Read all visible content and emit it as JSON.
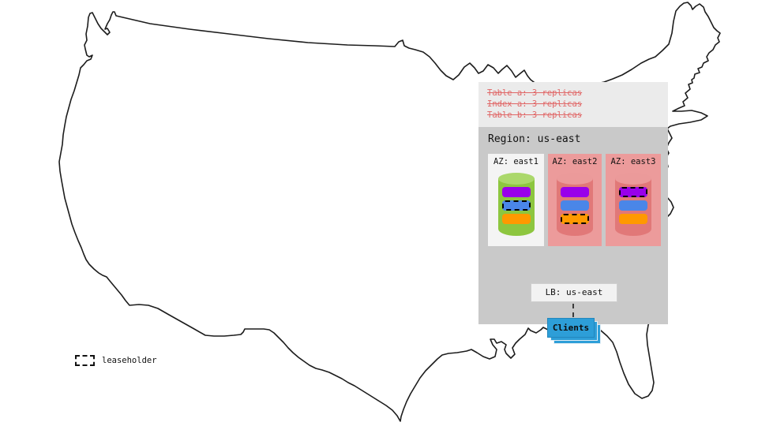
{
  "policies": [
    "Table a: 3 replicas",
    "Index a: 3 replicas",
    "Table b: 3 replicas"
  ],
  "region": {
    "title": "Region: us-east",
    "azs": [
      {
        "label": "AZ: east1",
        "status": "healthy",
        "cylinder": "green",
        "replicas": [
          {
            "color": "purple",
            "leaseholder": false
          },
          {
            "color": "blue",
            "leaseholder": true
          },
          {
            "color": "orange",
            "leaseholder": false
          }
        ]
      },
      {
        "label": "AZ: east2",
        "status": "unavailable",
        "cylinder": "red",
        "replicas": [
          {
            "color": "purple",
            "leaseholder": false
          },
          {
            "color": "blue",
            "leaseholder": false
          },
          {
            "color": "orange",
            "leaseholder": true
          }
        ]
      },
      {
        "label": "AZ: east3",
        "status": "unavailable",
        "cylinder": "red",
        "replicas": [
          {
            "color": "purple",
            "leaseholder": true
          },
          {
            "color": "blue",
            "leaseholder": false
          },
          {
            "color": "orange",
            "leaseholder": false
          }
        ]
      }
    ],
    "load_balancer": {
      "label": "LB: us-east"
    },
    "clients": {
      "label": "Clients"
    }
  },
  "legend": {
    "label": "leaseholder"
  },
  "colors": {
    "policy_text": "#e06666",
    "panel_top_bg": "#ebebeb",
    "panel_region_bg": "#c9c9c9",
    "az_healthy_bg": "#f4f4f4",
    "az_unavailable_bg": "#ec9b9b",
    "cylinder_green_body": "#8dc63f",
    "cylinder_green_top": "#abd86b",
    "cylinder_red_body": "#e17878",
    "cylinder_red_top": "#eb9a9a",
    "replica": {
      "purple": "#9900ea",
      "blue": "#4a86e8",
      "orange": "#ff9900"
    },
    "clients_bg": "#2d9ed8",
    "map_outline": "#1c1c1c"
  }
}
